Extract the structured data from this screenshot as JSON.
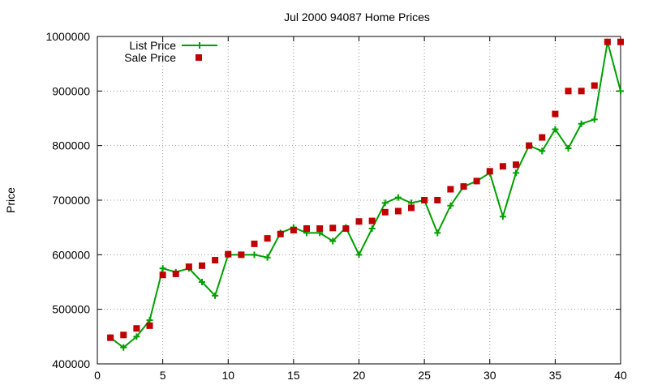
{
  "chart_data": {
    "type": "line",
    "title": "Jul 2000 94087 Home Prices",
    "xlabel": "",
    "ylabel": "Price",
    "xlim": [
      0,
      40
    ],
    "ylim": [
      400000,
      1000000
    ],
    "xticks": [
      0,
      5,
      10,
      15,
      20,
      25,
      30,
      35,
      40
    ],
    "yticks": [
      400000,
      500000,
      600000,
      700000,
      800000,
      900000,
      1000000
    ],
    "grid": true,
    "legend_position": "top-left",
    "x": [
      1,
      2,
      3,
      4,
      5,
      6,
      7,
      8,
      9,
      10,
      11,
      12,
      13,
      14,
      15,
      16,
      17,
      18,
      19,
      20,
      21,
      22,
      23,
      24,
      25,
      26,
      27,
      28,
      29,
      30,
      31,
      32,
      33,
      34,
      35,
      36,
      37,
      38,
      39,
      40
    ],
    "series": [
      {
        "name": "List Price",
        "style": "line+plus",
        "color": "#00a000",
        "values": [
          448000,
          430000,
          450000,
          480000,
          575000,
          568000,
          575000,
          550000,
          525000,
          600000,
          600000,
          600000,
          595000,
          640000,
          650000,
          640000,
          640000,
          625000,
          650000,
          600000,
          648000,
          695000,
          705000,
          695000,
          700000,
          640000,
          690000,
          725000,
          735000,
          750000,
          670000,
          750000,
          800000,
          790000,
          830000,
          795000,
          840000,
          848000,
          990000,
          900000
        ]
      },
      {
        "name": "Sale Price",
        "style": "square",
        "color": "#c00000",
        "values": [
          448000,
          453000,
          465000,
          470000,
          563000,
          565000,
          578000,
          580000,
          590000,
          601000,
          600000,
          620000,
          630000,
          638000,
          645000,
          648000,
          648000,
          649000,
          648000,
          661000,
          662000,
          678000,
          680000,
          686000,
          700000,
          700000,
          720000,
          725000,
          735000,
          753000,
          762000,
          765000,
          800000,
          815000,
          858000,
          900000,
          900000,
          910000,
          990000,
          990000
        ]
      }
    ]
  }
}
